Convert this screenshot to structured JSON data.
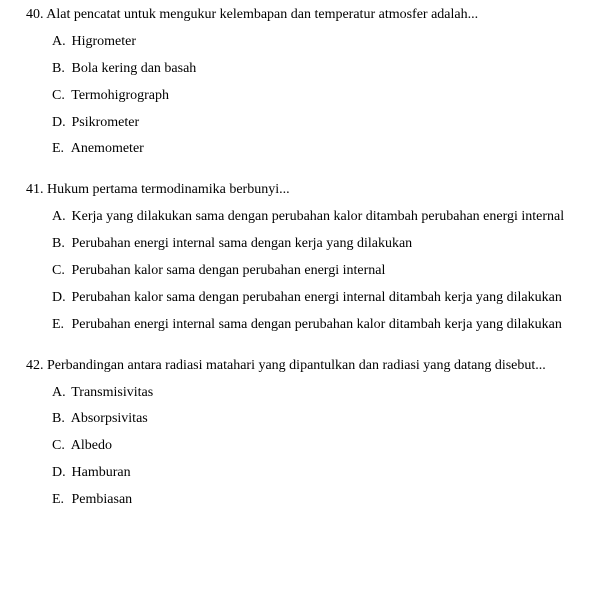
{
  "questions": [
    {
      "number": "40.",
      "stem": "Alat pencatat untuk mengukur kelembapan dan temperatur atmosfer adalah...",
      "options": [
        {
          "letter": "A.",
          "text": "Higrometer"
        },
        {
          "letter": "B.",
          "text": "Bola kering dan basah"
        },
        {
          "letter": "C.",
          "text": "Termohigrograph"
        },
        {
          "letter": "D.",
          "text": "Psikrometer"
        },
        {
          "letter": "E.",
          "text": "Anemometer"
        }
      ]
    },
    {
      "number": "41.",
      "stem": "Hukum pertama termodinamika berbunyi...",
      "options": [
        {
          "letter": "A.",
          "text": "Kerja yang dilakukan sama dengan perubahan kalor ditambah perubahan energi internal"
        },
        {
          "letter": "B.",
          "text": "Perubahan energi internal sama dengan kerja yang dilakukan"
        },
        {
          "letter": "C.",
          "text": "Perubahan kalor sama dengan perubahan energi internal"
        },
        {
          "letter": "D.",
          "text": "Perubahan kalor sama dengan perubahan energi internal ditambah kerja yang dilakukan"
        },
        {
          "letter": "E.",
          "text": "Perubahan energi internal sama dengan perubahan kalor ditambah kerja yang dilakukan"
        }
      ]
    },
    {
      "number": "42.",
      "stem": "Perbandingan antara radiasi matahari yang dipantulkan dan radiasi yang datang disebut...",
      "options": [
        {
          "letter": "A.",
          "text": "Transmisivitas"
        },
        {
          "letter": "B.",
          "text": "Absorpsivitas"
        },
        {
          "letter": "C.",
          "text": "Albedo"
        },
        {
          "letter": "D.",
          "text": "Hamburan"
        },
        {
          "letter": "E.",
          "text": "Pembiasan"
        }
      ]
    }
  ]
}
